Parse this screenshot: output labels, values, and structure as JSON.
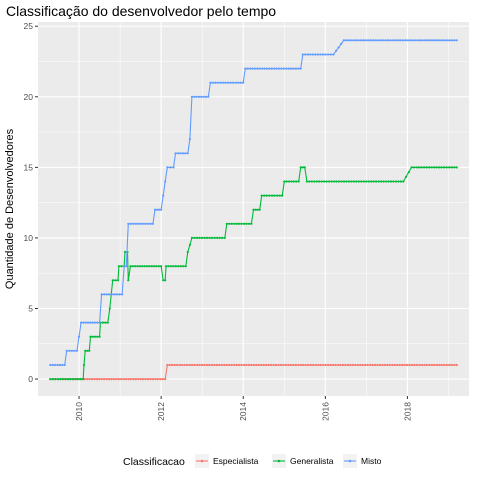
{
  "chart_data": {
    "type": "line",
    "title": "Classificação do desenvolvedor pelo tempo",
    "xlabel": "",
    "ylabel": "Quantidade de Desenvolvedores",
    "xlim": [
      2009.0,
      2019.5
    ],
    "ylim": [
      -1.2,
      25.3
    ],
    "x_ticks": [
      2010,
      2012,
      2014,
      2016,
      2018
    ],
    "x_tick_labels": [
      "2010",
      "2012",
      "2014",
      "2016",
      "2018"
    ],
    "y_ticks": [
      0,
      5,
      10,
      15,
      20,
      25
    ],
    "y_tick_labels": [
      "0",
      "5",
      "10",
      "15",
      "20",
      "25"
    ],
    "grid": true,
    "panel_background": "#ebebeb",
    "legend": {
      "title": "Classificacao",
      "position": "bottom"
    },
    "series": [
      {
        "name": "Especialista",
        "color": "#f8766d",
        "points": [
          [
            2009.3,
            0
          ],
          [
            2012.1,
            0
          ],
          [
            2012.15,
            1
          ],
          [
            2019.2,
            1
          ]
        ]
      },
      {
        "name": "Generalista",
        "color": "#00ba38",
        "points": [
          [
            2009.3,
            0
          ],
          [
            2009.55,
            0
          ],
          [
            2009.85,
            0
          ],
          [
            2010.1,
            0
          ],
          [
            2010.12,
            1
          ],
          [
            2010.15,
            2
          ],
          [
            2010.25,
            2
          ],
          [
            2010.28,
            3
          ],
          [
            2010.5,
            3
          ],
          [
            2010.52,
            4
          ],
          [
            2010.7,
            4
          ],
          [
            2010.75,
            5
          ],
          [
            2010.82,
            7
          ],
          [
            2010.95,
            7
          ],
          [
            2010.97,
            8
          ],
          [
            2011.1,
            8
          ],
          [
            2011.12,
            9
          ],
          [
            2011.18,
            9
          ],
          [
            2011.2,
            7
          ],
          [
            2011.25,
            8
          ],
          [
            2012.0,
            8
          ],
          [
            2012.05,
            7
          ],
          [
            2012.1,
            7
          ],
          [
            2012.12,
            8
          ],
          [
            2012.6,
            8
          ],
          [
            2012.65,
            9
          ],
          [
            2012.75,
            10
          ],
          [
            2013.55,
            10
          ],
          [
            2013.6,
            11
          ],
          [
            2014.2,
            11
          ],
          [
            2014.25,
            12
          ],
          [
            2014.4,
            12
          ],
          [
            2014.45,
            13
          ],
          [
            2014.95,
            13
          ],
          [
            2015.0,
            14
          ],
          [
            2015.35,
            14
          ],
          [
            2015.4,
            15
          ],
          [
            2015.5,
            15
          ],
          [
            2015.55,
            14
          ],
          [
            2017.9,
            14
          ],
          [
            2018.1,
            15
          ],
          [
            2019.2,
            15
          ]
        ]
      },
      {
        "name": "Misto",
        "color": "#619cff",
        "points": [
          [
            2009.3,
            1
          ],
          [
            2009.65,
            1
          ],
          [
            2009.7,
            2
          ],
          [
            2009.95,
            2
          ],
          [
            2010.0,
            3
          ],
          [
            2010.05,
            4
          ],
          [
            2010.5,
            4
          ],
          [
            2010.55,
            6
          ],
          [
            2011.05,
            6
          ],
          [
            2011.1,
            8
          ],
          [
            2011.15,
            8
          ],
          [
            2011.2,
            11
          ],
          [
            2011.8,
            11
          ],
          [
            2011.85,
            12
          ],
          [
            2012.0,
            12
          ],
          [
            2012.05,
            13
          ],
          [
            2012.1,
            14
          ],
          [
            2012.15,
            15
          ],
          [
            2012.3,
            15
          ],
          [
            2012.35,
            16
          ],
          [
            2012.65,
            16
          ],
          [
            2012.7,
            17
          ],
          [
            2012.75,
            20
          ],
          [
            2013.15,
            20
          ],
          [
            2013.2,
            21
          ],
          [
            2014.0,
            21
          ],
          [
            2014.05,
            22
          ],
          [
            2015.4,
            22
          ],
          [
            2015.45,
            23
          ],
          [
            2016.0,
            23
          ],
          [
            2016.2,
            23
          ],
          [
            2016.45,
            24
          ],
          [
            2019.2,
            24
          ]
        ]
      }
    ]
  }
}
